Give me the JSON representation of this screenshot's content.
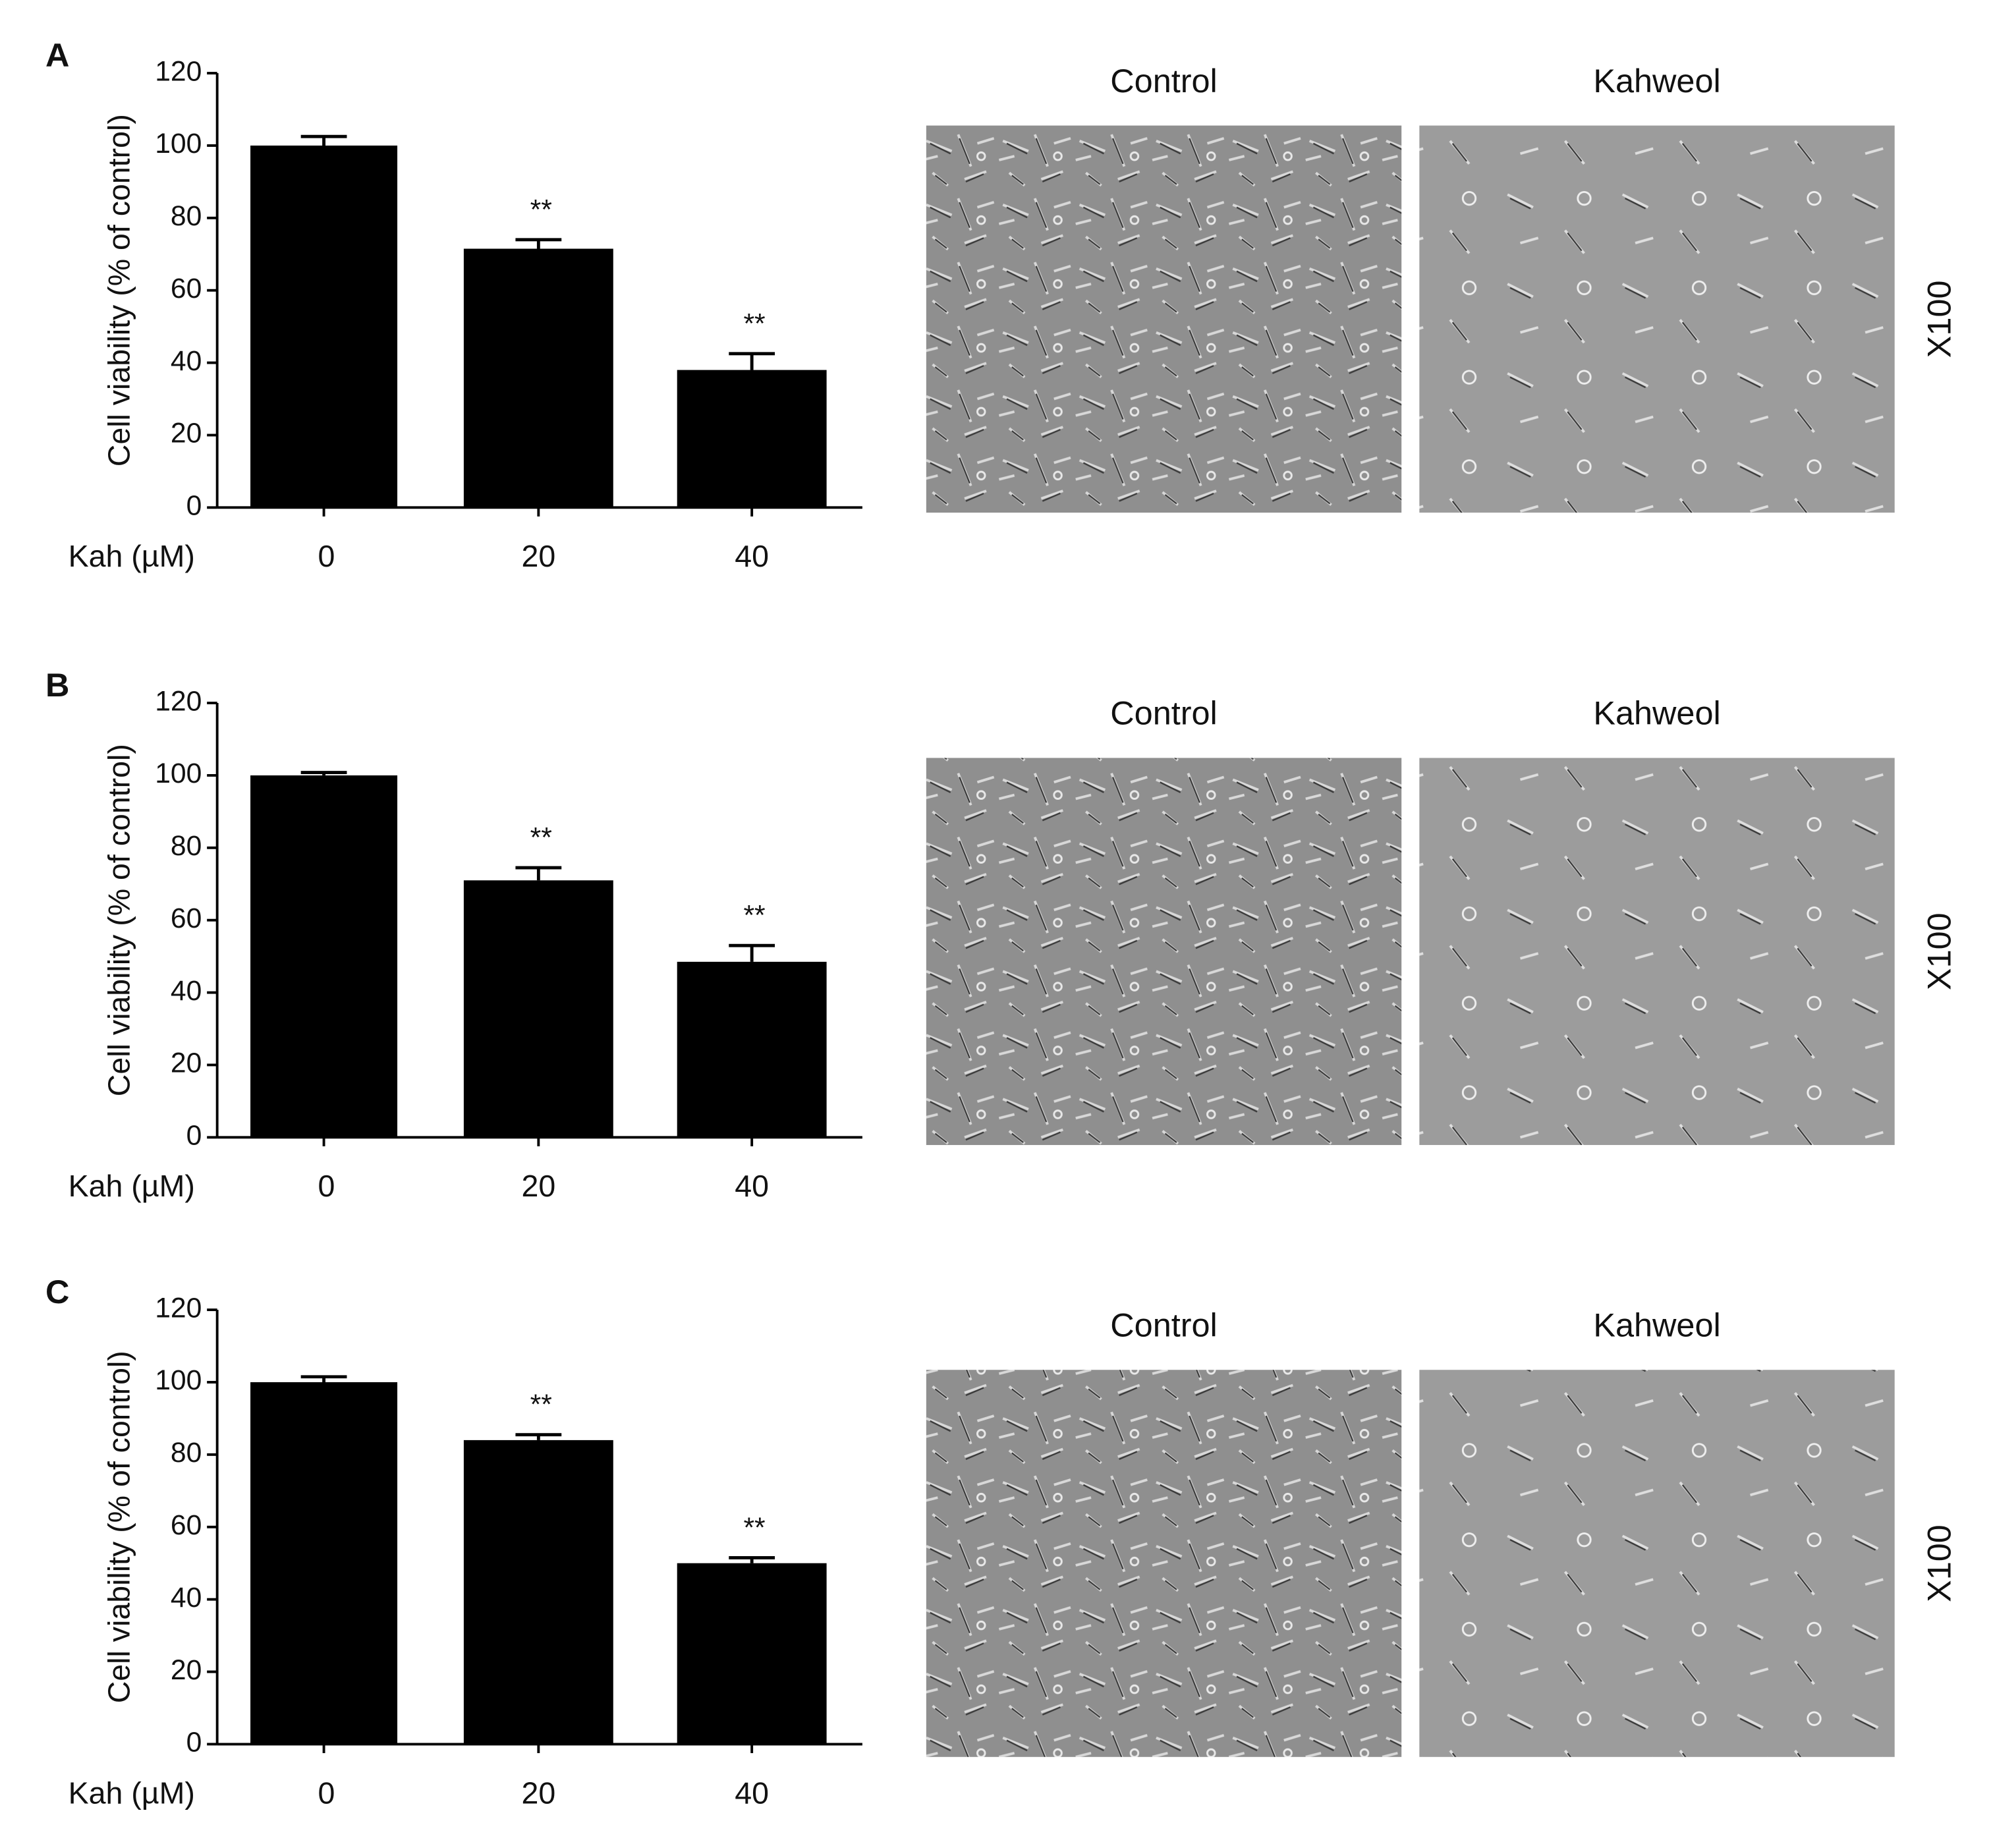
{
  "chart_data": [
    {
      "type": "bar",
      "panel_label": "A",
      "ylabel": "Cell viability (% of control)",
      "xlabel": "Kah (µM)",
      "categories": [
        "0",
        "20",
        "40"
      ],
      "values": [
        100,
        71.5,
        38
      ],
      "errors": [
        2.5,
        2.5,
        4.5
      ],
      "annotations": [
        null,
        "**",
        "**"
      ],
      "color": "#000000",
      "ylim": [
        0,
        120
      ],
      "yticks": [
        0,
        20,
        40,
        60,
        80,
        100,
        120
      ],
      "image_labels": [
        "Control",
        "Kahweol"
      ],
      "magnification": "X100"
    },
    {
      "type": "bar",
      "panel_label": "B",
      "ylabel": "Cell viability (% of control)",
      "xlabel": "Kah (µM)",
      "categories": [
        "0",
        "20",
        "40"
      ],
      "values": [
        100,
        71,
        48.5
      ],
      "errors": [
        0.8,
        3.5,
        4.5
      ],
      "annotations": [
        null,
        "**",
        "**"
      ],
      "color": "#000000",
      "ylim": [
        0,
        120
      ],
      "yticks": [
        0,
        20,
        40,
        60,
        80,
        100,
        120
      ],
      "image_labels": [
        "Control",
        "Kahweol"
      ],
      "magnification": "X100"
    },
    {
      "type": "bar",
      "panel_label": "C",
      "ylabel": "Cell viability (% of control)",
      "xlabel": "Kah (µM)",
      "categories": [
        "0",
        "20",
        "40"
      ],
      "values": [
        100,
        84,
        50
      ],
      "errors": [
        1.5,
        1.5,
        1.5
      ],
      "annotations": [
        null,
        "**",
        "**"
      ],
      "color": "#000000",
      "ylim": [
        0,
        120
      ],
      "yticks": [
        0,
        20,
        40,
        60,
        80,
        100,
        120
      ],
      "image_labels": [
        "Control",
        "Kahweol"
      ],
      "magnification": "X100"
    }
  ]
}
